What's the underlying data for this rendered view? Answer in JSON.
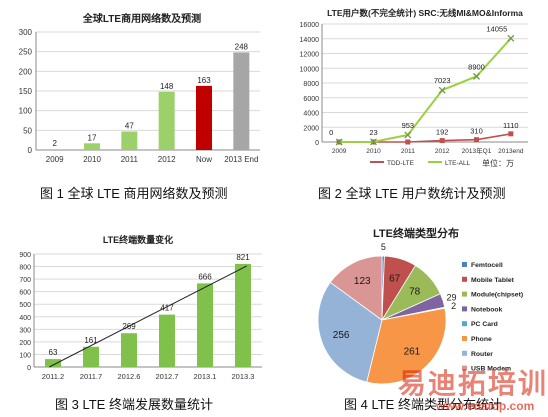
{
  "captions": {
    "fig1": "图 1  全球 LTE 商用网络数及预测",
    "fig2": "图 2  全球 LTE 用户数统计及预测",
    "fig3": "图 3 LTE 终端发展数量统计",
    "fig4": "图 4    LTE 终端类型分布统计"
  },
  "watermark": {
    "main": "易迪拓培训",
    "url": "www.edatop.com"
  },
  "chart_data": [
    {
      "id": "fig1",
      "type": "bar",
      "title": "全球LTE商用网络数及预测",
      "categories": [
        "2009",
        "2010",
        "2011",
        "2012",
        "Now",
        "2013 End"
      ],
      "values": [
        2,
        17,
        47,
        148,
        163,
        248
      ],
      "ylim": [
        0,
        300
      ],
      "yticks": [
        0,
        50,
        100,
        150,
        200,
        250,
        300
      ],
      "grid": true,
      "colors": [
        "#9bd06a",
        "#9bd06a",
        "#9bd06a",
        "#9bd06a",
        "#c00000",
        "#a6a6a6"
      ]
    },
    {
      "id": "fig2",
      "type": "line",
      "title": "LTE用户数(不完全统计)  SRC:无线MI&MO&Informa",
      "categories": [
        "2009",
        "2010",
        "2011",
        "2012",
        "2013年Q1",
        "2013end"
      ],
      "unit_label": "单位：万",
      "ylim": [
        0,
        16000
      ],
      "yticks": [
        0,
        2000,
        4000,
        6000,
        8000,
        10000,
        12000,
        14000,
        16000
      ],
      "grid": true,
      "legend_position": "bottom",
      "series": [
        {
          "name": "TDD-LTE",
          "values": [
            0,
            0,
            0,
            192,
            310,
            1110
          ],
          "labels": [
            "",
            "",
            "",
            "192",
            "310",
            "1110"
          ],
          "color": "#c0504d"
        },
        {
          "name": "LTE-ALL",
          "values": [
            0,
            23,
            953,
            7023,
            8900,
            14055
          ],
          "labels": [
            "0",
            "23",
            "953",
            "7023",
            "8900",
            "14055"
          ],
          "color": "#9bd040"
        }
      ]
    },
    {
      "id": "fig3",
      "type": "bar",
      "title": "LTE终端数量变化",
      "categories": [
        "2011.2",
        "2011.7",
        "2012.6",
        "2012.7",
        "2013.1",
        "2013.3"
      ],
      "values": [
        63,
        161,
        269,
        417,
        666,
        821
      ],
      "ylim": [
        0,
        900
      ],
      "yticks": [
        0,
        100,
        200,
        300,
        400,
        500,
        600,
        700,
        800,
        900
      ],
      "grid": true,
      "trendline": true,
      "color": "#7fc14a"
    },
    {
      "id": "fig4",
      "type": "pie",
      "title": "LTE终端类型分布",
      "legend_position": "right",
      "slices": [
        {
          "label": "Femtocell",
          "value": 5,
          "color": "#4f81bd"
        },
        {
          "label": "Mobile Tablet",
          "value": 67,
          "color": "#c0504d"
        },
        {
          "label": "Module(chipset)",
          "value": 78,
          "color": "#9bbb59"
        },
        {
          "label": "Notebook",
          "value": 29,
          "color": "#8064a2"
        },
        {
          "label": "PC Card",
          "value": 2,
          "color": "#4bacc6"
        },
        {
          "label": "Phone",
          "value": 261,
          "color": "#f79646"
        },
        {
          "label": "Router",
          "value": 256,
          "color": "#95b3d7"
        },
        {
          "label": "USB Modem",
          "value": 123,
          "color": "#d99694"
        }
      ]
    }
  ]
}
